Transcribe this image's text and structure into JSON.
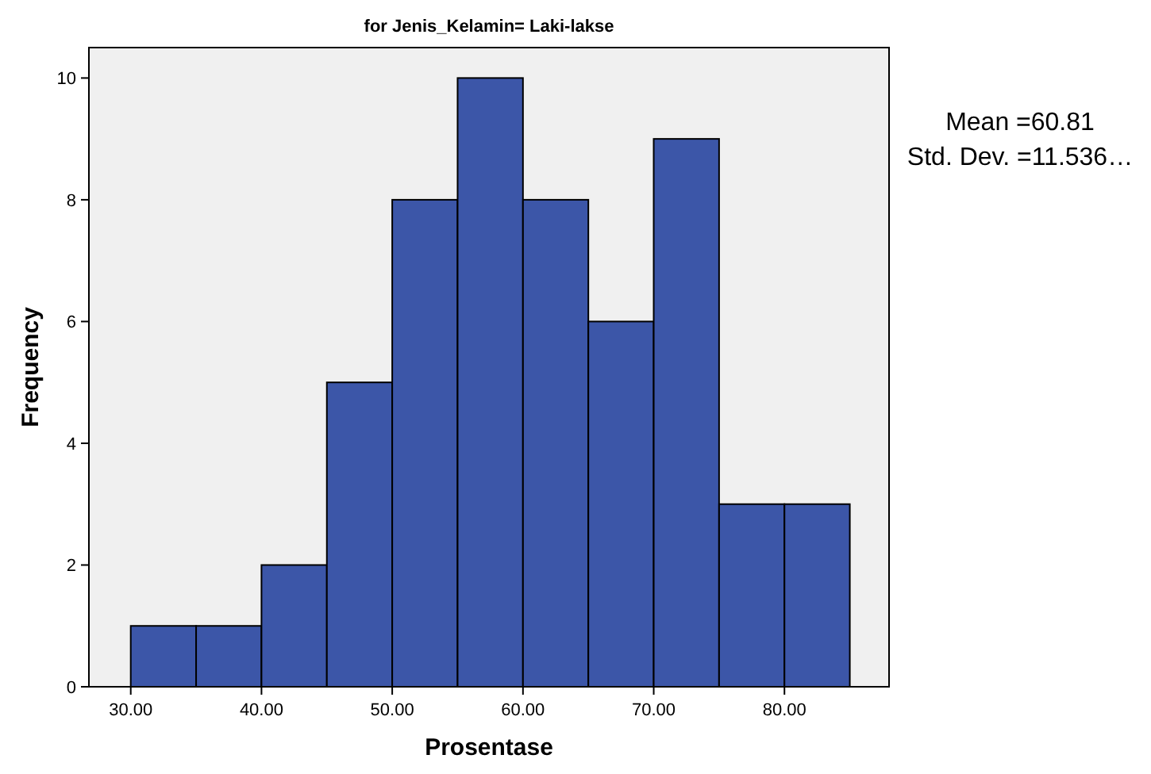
{
  "chart_data": {
    "type": "histogram",
    "title": "for Jenis_Kelamin= Laki-lakse",
    "xlabel": "Prosentase",
    "ylabel": "Frequency",
    "bins": [
      30,
      35,
      40,
      45,
      50,
      55,
      60,
      65,
      70,
      75,
      80,
      85
    ],
    "values": [
      1,
      1,
      2,
      5,
      8,
      10,
      8,
      6,
      9,
      3,
      3
    ],
    "color": "#3c56a8",
    "xlim": [
      26.8,
      88
    ],
    "xticks": [
      {
        "value": 30,
        "label": "30.00"
      },
      {
        "value": 40,
        "label": "40.00"
      },
      {
        "value": 50,
        "label": "50.00"
      },
      {
        "value": 60,
        "label": "60.00"
      },
      {
        "value": 70,
        "label": "70.00"
      },
      {
        "value": 80,
        "label": "80.00"
      }
    ],
    "ylim": [
      0,
      10.5
    ],
    "yticks": [
      0,
      2,
      4,
      6,
      8,
      10
    ],
    "annotations": [
      "Mean =60.81",
      "Std. Dev. =11.536…"
    ]
  }
}
